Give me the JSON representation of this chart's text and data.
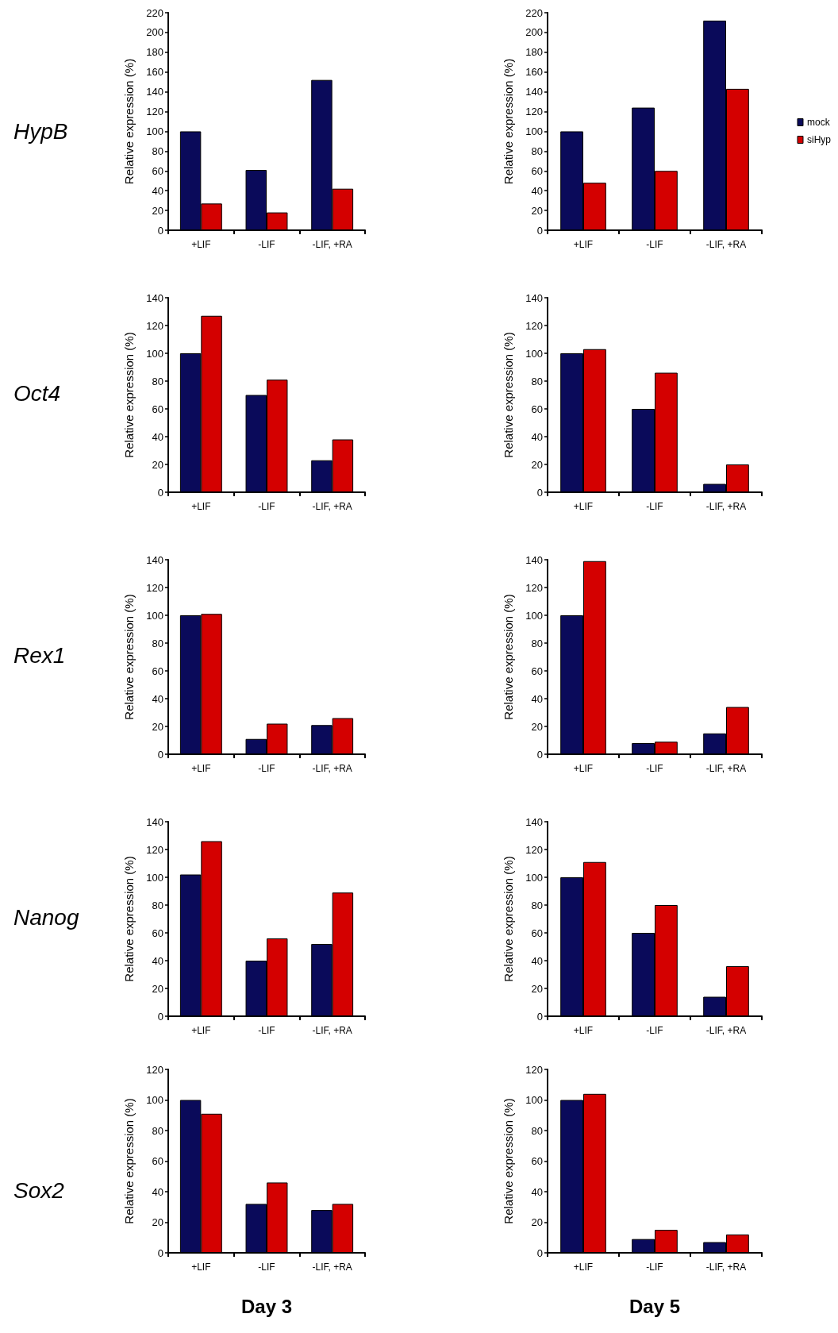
{
  "chart_data": [
    {
      "type": "bar",
      "title": "HypB",
      "ylabel": "Relative expression (%)",
      "categories": [
        "+LIF",
        "-LIF",
        "-LIF, +RA"
      ],
      "ylim": [
        0,
        220
      ],
      "yticks": [
        0,
        20,
        40,
        60,
        80,
        100,
        120,
        140,
        160,
        180,
        200,
        220
      ],
      "series": [
        {
          "color": "#0a0a5a",
          "values": [
            100,
            61,
            152
          ]
        },
        {
          "color": "#d40000",
          "values": [
            27,
            18,
            42
          ]
        }
      ]
    },
    {
      "type": "bar",
      "ylabel": "Relative expression (%)",
      "categories": [
        "+LIF",
        "-LIF",
        "-LIF, +RA"
      ],
      "ylim": [
        0,
        220
      ],
      "yticks": [
        0,
        20,
        40,
        60,
        80,
        100,
        120,
        140,
        160,
        180,
        200,
        220
      ],
      "legend": "right",
      "series": [
        {
          "name": "mock",
          "color": "#0a0a5a",
          "values": [
            100,
            124,
            212
          ]
        },
        {
          "name": "siHyp",
          "color": "#d40000",
          "values": [
            48,
            60,
            143
          ]
        }
      ]
    },
    {
      "type": "bar",
      "title": "Oct4",
      "ylabel": "Relative expression (%)",
      "categories": [
        "+LIF",
        "-LIF",
        "-LIF, +RA"
      ],
      "ylim": [
        0,
        140
      ],
      "yticks": [
        0,
        20,
        40,
        60,
        80,
        100,
        120,
        140
      ],
      "series": [
        {
          "color": "#0a0a5a",
          "values": [
            100,
            70,
            23
          ]
        },
        {
          "color": "#d40000",
          "values": [
            127,
            81,
            38
          ]
        }
      ]
    },
    {
      "type": "bar",
      "ylabel": "Relative expression (%)",
      "categories": [
        "+LIF",
        "-LIF",
        "-LIF, +RA"
      ],
      "ylim": [
        0,
        140
      ],
      "yticks": [
        0,
        20,
        40,
        60,
        80,
        100,
        120,
        140
      ],
      "series": [
        {
          "color": "#0a0a5a",
          "values": [
            100,
            60,
            6
          ]
        },
        {
          "color": "#d40000",
          "values": [
            103,
            86,
            20
          ]
        }
      ]
    },
    {
      "type": "bar",
      "title": "Rex1",
      "ylabel": "Relative expression (%)",
      "categories": [
        "+LIF",
        "-LIF",
        "-LIF, +RA"
      ],
      "ylim": [
        0,
        140
      ],
      "yticks": [
        0,
        20,
        40,
        60,
        80,
        100,
        120,
        140
      ],
      "series": [
        {
          "color": "#0a0a5a",
          "values": [
            100,
            11,
            21
          ]
        },
        {
          "color": "#d40000",
          "values": [
            101,
            22,
            26
          ]
        }
      ]
    },
    {
      "type": "bar",
      "ylabel": "Relative expression (%)",
      "categories": [
        "+LIF",
        "-LIF",
        "-LIF, +RA"
      ],
      "ylim": [
        0,
        140
      ],
      "yticks": [
        0,
        20,
        40,
        60,
        80,
        100,
        120,
        140
      ],
      "series": [
        {
          "color": "#0a0a5a",
          "values": [
            100,
            8,
            15
          ]
        },
        {
          "color": "#d40000",
          "values": [
            139,
            9,
            34
          ]
        }
      ]
    },
    {
      "type": "bar",
      "title": "Nanog",
      "ylabel": "Relative expression (%)",
      "categories": [
        "+LIF",
        "-LIF",
        "-LIF, +RA"
      ],
      "ylim": [
        0,
        140
      ],
      "yticks": [
        0,
        20,
        40,
        60,
        80,
        100,
        120,
        140
      ],
      "series": [
        {
          "color": "#0a0a5a",
          "values": [
            102,
            40,
            52
          ]
        },
        {
          "color": "#d40000",
          "values": [
            126,
            56,
            89
          ]
        }
      ]
    },
    {
      "type": "bar",
      "ylabel": "Relative expression (%)",
      "categories": [
        "+LIF",
        "-LIF",
        "-LIF, +RA"
      ],
      "ylim": [
        0,
        140
      ],
      "yticks": [
        0,
        20,
        40,
        60,
        80,
        100,
        120,
        140
      ],
      "series": [
        {
          "color": "#0a0a5a",
          "values": [
            100,
            60,
            14
          ]
        },
        {
          "color": "#d40000",
          "values": [
            111,
            80,
            36
          ]
        }
      ]
    },
    {
      "type": "bar",
      "title": "Sox2",
      "ylabel": "Relative expression (%)",
      "xlabel": "Day 3",
      "categories": [
        "+LIF",
        "-LIF",
        "-LIF, +RA"
      ],
      "ylim": [
        0,
        120
      ],
      "yticks": [
        0,
        20,
        40,
        60,
        80,
        100,
        120
      ],
      "series": [
        {
          "color": "#0a0a5a",
          "values": [
            100,
            32,
            28
          ]
        },
        {
          "color": "#d40000",
          "values": [
            91,
            46,
            32
          ]
        }
      ]
    },
    {
      "type": "bar",
      "ylabel": "Relative expression (%)",
      "xlabel": "Day 5",
      "categories": [
        "+LIF",
        "-LIF",
        "-LIF, +RA"
      ],
      "ylim": [
        0,
        120
      ],
      "yticks": [
        0,
        20,
        40,
        60,
        80,
        100,
        120
      ],
      "series": [
        {
          "color": "#0a0a5a",
          "values": [
            100,
            9,
            7
          ]
        },
        {
          "color": "#d40000",
          "values": [
            104,
            15,
            12
          ]
        }
      ]
    }
  ]
}
